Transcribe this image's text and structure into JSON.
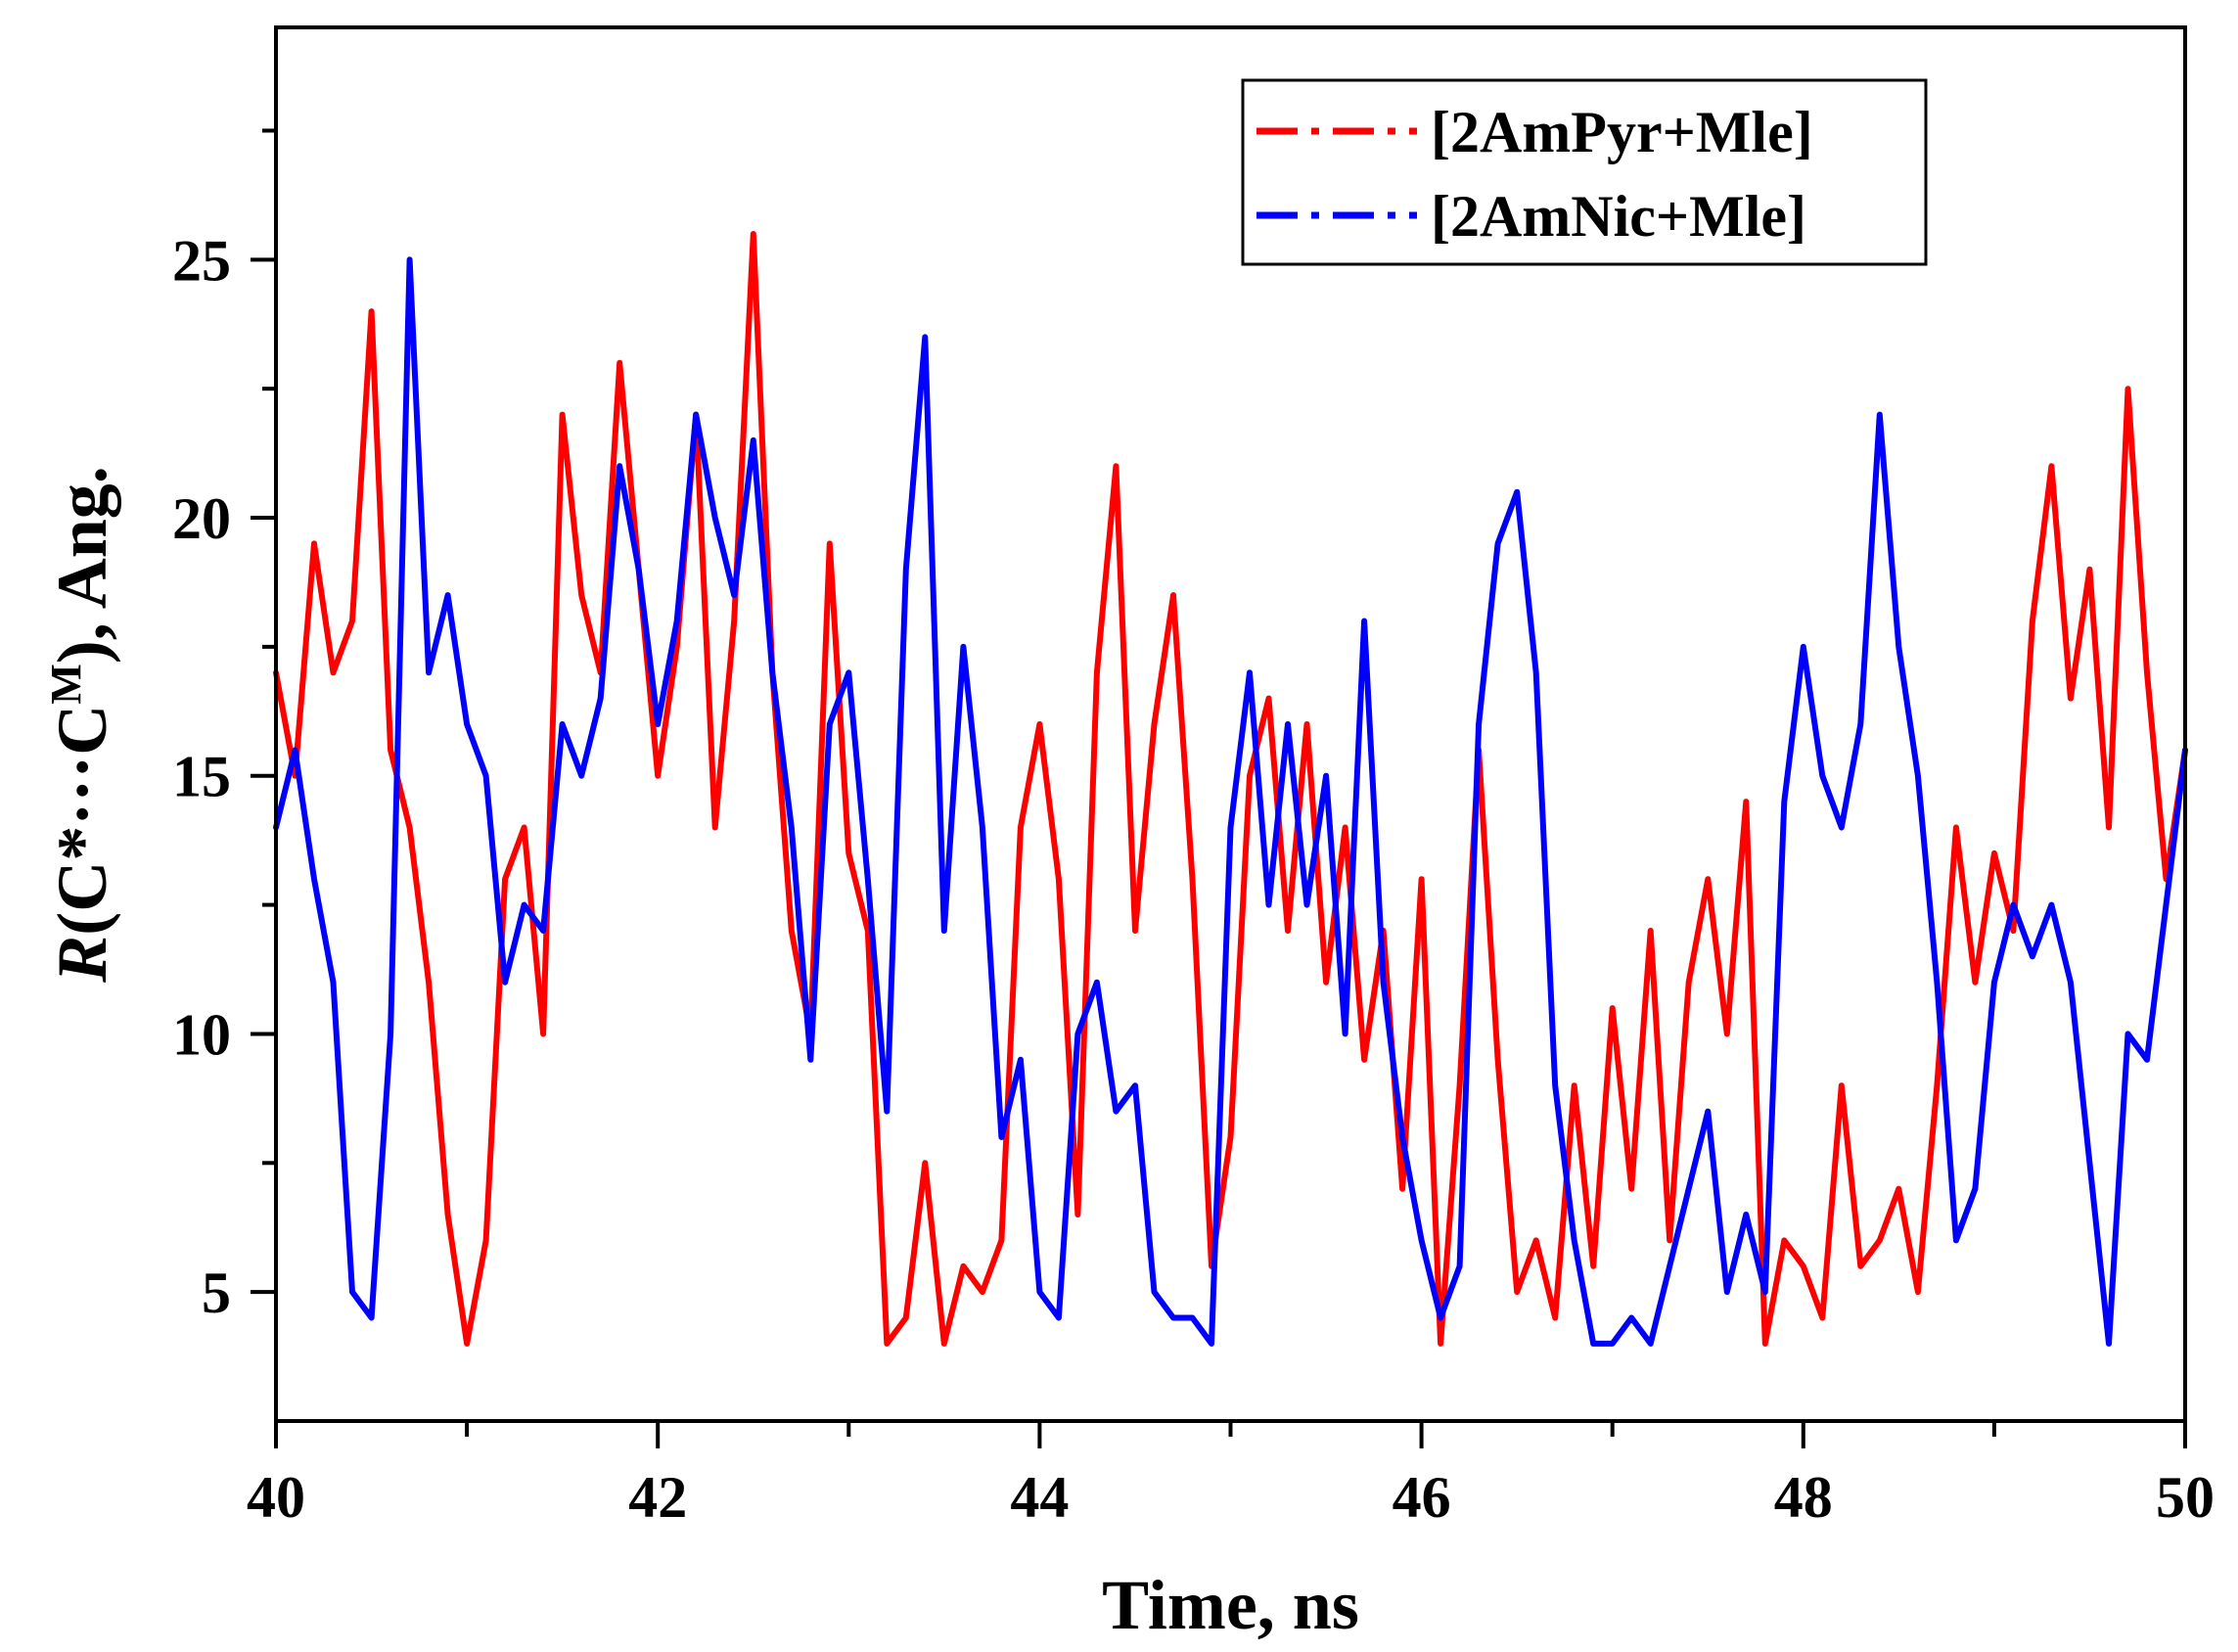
{
  "chart_data": {
    "type": "line",
    "title": "",
    "xlabel": "Time, ns",
    "ylabel": {
      "italic": "R",
      "main": "(C*···C",
      "superscript": "M",
      "tail": "), Ang."
    },
    "xlim": [
      40,
      50
    ],
    "ylim": [
      2.5,
      29.5
    ],
    "x_ticks": [
      40,
      42,
      44,
      46,
      48,
      50
    ],
    "x_tick_labels": [
      "40",
      "42",
      "44",
      "46",
      "48",
      "50"
    ],
    "y_ticks": [
      5,
      10,
      15,
      20,
      25
    ],
    "y_tick_labels": [
      "5",
      "10",
      "15",
      "20",
      "25"
    ],
    "grid": false,
    "legend_position": "top-right",
    "series": [
      {
        "name": "[2AmPyr+Mle]",
        "color": "#ff0000",
        "x": [
          40.0,
          40.1,
          40.2,
          40.3,
          40.4,
          40.5,
          40.6,
          40.7,
          40.8,
          40.9,
          41.0,
          41.1,
          41.2,
          41.3,
          41.4,
          41.5,
          41.6,
          41.7,
          41.8,
          41.9,
          42.0,
          42.1,
          42.2,
          42.3,
          42.4,
          42.5,
          42.6,
          42.7,
          42.8,
          42.9,
          43.0,
          43.1,
          43.2,
          43.3,
          43.4,
          43.5,
          43.6,
          43.7,
          43.8,
          43.9,
          44.0,
          44.1,
          44.2,
          44.3,
          44.4,
          44.5,
          44.6,
          44.7,
          44.8,
          44.9,
          45.0,
          45.1,
          45.2,
          45.3,
          45.4,
          45.5,
          45.6,
          45.7,
          45.8,
          45.9,
          46.0,
          46.1,
          46.2,
          46.3,
          46.4,
          46.5,
          46.6,
          46.7,
          46.8,
          46.9,
          47.0,
          47.1,
          47.2,
          47.3,
          47.4,
          47.5,
          47.6,
          47.7,
          47.8,
          47.9,
          48.0,
          48.1,
          48.2,
          48.3,
          48.4,
          48.5,
          48.6,
          48.7,
          48.8,
          48.9,
          49.0,
          49.1,
          49.2,
          49.3,
          49.4,
          49.5,
          49.6,
          49.7,
          49.8,
          49.9,
          50.0
        ],
        "values": [
          17.0,
          15.0,
          19.5,
          17.0,
          18.0,
          24.0,
          15.5,
          14.0,
          11.0,
          6.5,
          4.0,
          6.0,
          13.0,
          14.0,
          10.0,
          22.0,
          18.5,
          17.0,
          23.0,
          19.0,
          15.0,
          17.5,
          22.0,
          14.0,
          18.0,
          25.5,
          17.0,
          12.0,
          10.0,
          19.5,
          13.5,
          12.0,
          4.0,
          4.5,
          7.5,
          4.0,
          5.5,
          5.0,
          6.0,
          14.0,
          16.0,
          13.0,
          6.5,
          17.0,
          21.0,
          12.0,
          16.0,
          18.5,
          13.0,
          5.5,
          8.0,
          15.0,
          16.5,
          12.0,
          16.0,
          11.0,
          14.0,
          9.5,
          12.0,
          7.0,
          13.0,
          4.0,
          9.0,
          15.5,
          9.5,
          5.0,
          6.0,
          4.5,
          9.0,
          5.5,
          10.5,
          7.0,
          12.0,
          6.0,
          11.0,
          13.0,
          10.0,
          14.5,
          4.0,
          6.0,
          5.5,
          4.5,
          9.0,
          5.5,
          6.0,
          7.0,
          5.0,
          9.0,
          14.0,
          11.0,
          13.5,
          12.0,
          18.0,
          21.0,
          16.5,
          19.0,
          14.0,
          22.5,
          17.0,
          13.0,
          15.5
        ]
      },
      {
        "name": "[2AmNic+Mle]",
        "color": "#0000ff",
        "x": [
          40.0,
          40.1,
          40.2,
          40.3,
          40.4,
          40.5,
          40.6,
          40.7,
          40.8,
          40.9,
          41.0,
          41.1,
          41.2,
          41.3,
          41.4,
          41.5,
          41.6,
          41.7,
          41.8,
          41.9,
          42.0,
          42.1,
          42.2,
          42.3,
          42.4,
          42.5,
          42.6,
          42.7,
          42.8,
          42.9,
          43.0,
          43.1,
          43.2,
          43.3,
          43.4,
          43.5,
          43.6,
          43.7,
          43.8,
          43.9,
          44.0,
          44.1,
          44.2,
          44.3,
          44.4,
          44.5,
          44.6,
          44.7,
          44.8,
          44.9,
          45.0,
          45.1,
          45.2,
          45.3,
          45.4,
          45.5,
          45.6,
          45.7,
          45.8,
          45.9,
          46.0,
          46.1,
          46.2,
          46.3,
          46.4,
          46.5,
          46.6,
          46.7,
          46.8,
          46.9,
          47.0,
          47.1,
          47.2,
          47.3,
          47.4,
          47.5,
          47.6,
          47.7,
          47.8,
          47.9,
          48.0,
          48.1,
          48.2,
          48.3,
          48.4,
          48.5,
          48.6,
          48.7,
          48.8,
          48.9,
          49.0,
          49.1,
          49.2,
          49.3,
          49.4,
          49.5,
          49.6,
          49.7,
          49.8,
          49.9,
          50.0
        ],
        "values": [
          14.0,
          15.5,
          13.0,
          11.0,
          5.0,
          4.5,
          10.0,
          25.0,
          17.0,
          18.5,
          16.0,
          15.0,
          11.0,
          12.5,
          12.0,
          16.0,
          15.0,
          16.5,
          21.0,
          19.0,
          16.0,
          18.0,
          22.0,
          20.0,
          18.5,
          21.5,
          17.0,
          14.0,
          9.5,
          16.0,
          17.0,
          13.0,
          8.5,
          19.0,
          23.5,
          12.0,
          17.5,
          14.0,
          8.0,
          9.5,
          5.0,
          4.5,
          10.0,
          11.0,
          8.5,
          9.0,
          5.0,
          4.5,
          4.5,
          4.0,
          14.0,
          17.0,
          12.5,
          16.0,
          12.5,
          15.0,
          10.0,
          18.0,
          11.0,
          8.0,
          6.0,
          4.5,
          5.5,
          16.0,
          19.5,
          20.5,
          17.0,
          9.0,
          6.0,
          4.0,
          4.0,
          4.5,
          4.0,
          5.5,
          7.0,
          8.5,
          5.0,
          6.5,
          5.0,
          14.5,
          17.5,
          15.0,
          14.0,
          16.0,
          22.0,
          17.5,
          15.0,
          11.0,
          6.0,
          7.0,
          11.0,
          12.5,
          11.5,
          12.5,
          11.0,
          7.5,
          4.0,
          10.0,
          9.5,
          12.5,
          15.5
        ]
      }
    ]
  }
}
